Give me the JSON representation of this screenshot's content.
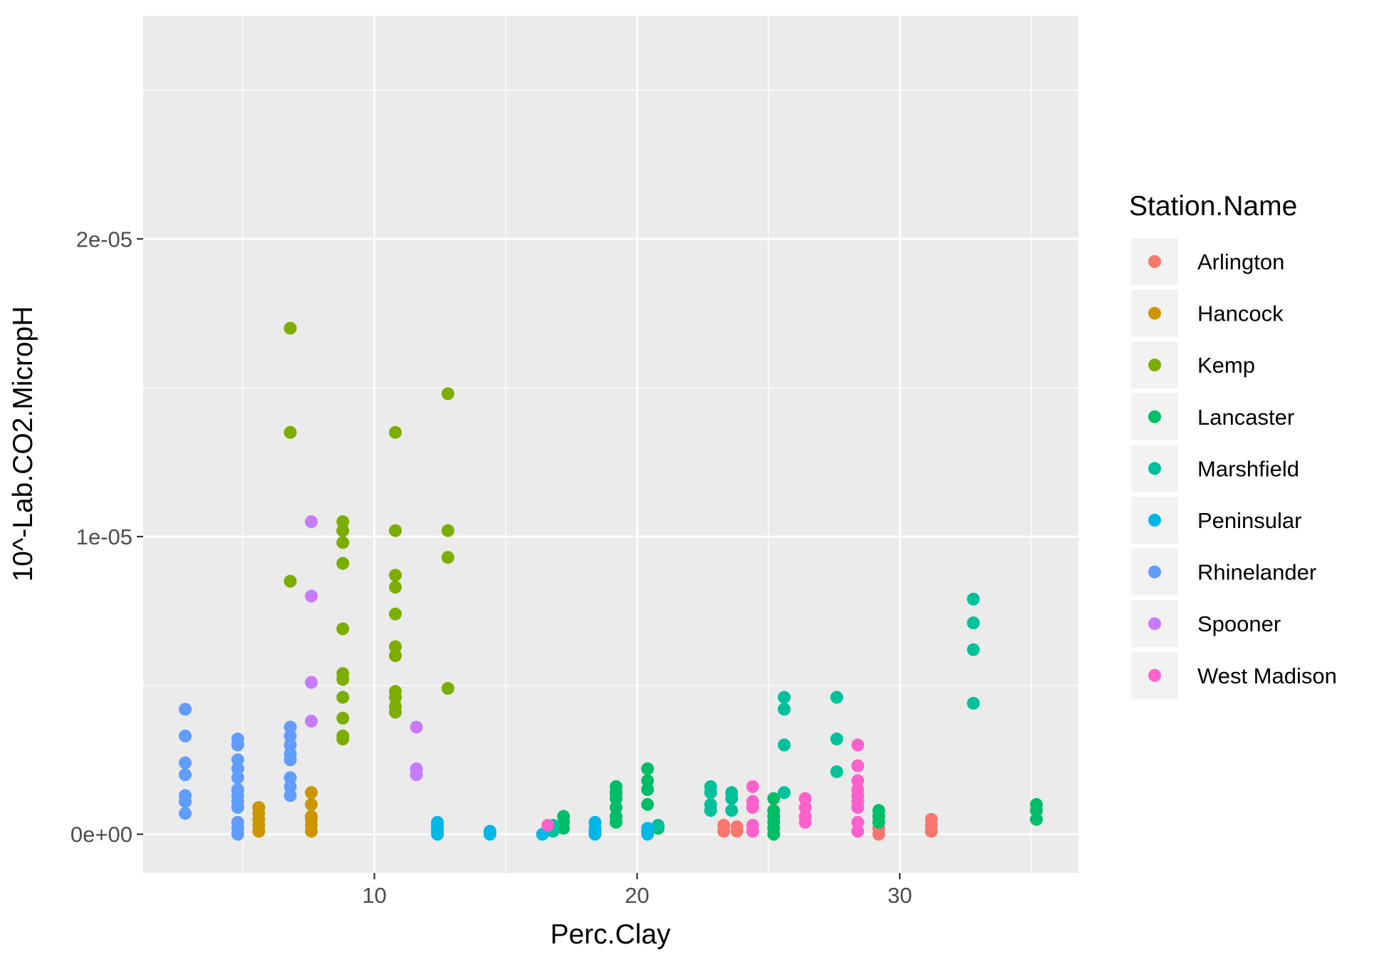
{
  "chart_data": {
    "type": "scatter",
    "title": "",
    "xlabel": "Perc.Clay",
    "ylabel": "10^-Lab.CO2.MicropH",
    "xlim": [
      1.2,
      36.8
    ],
    "ylim": [
      -1.3e-06,
      2.75e-05
    ],
    "x_ticks": [
      10,
      20,
      30
    ],
    "x_tick_labels": [
      "10",
      "20",
      "30"
    ],
    "y_ticks": [
      0,
      1e-05,
      2e-05
    ],
    "y_tick_labels": [
      "0e+00",
      "1e-05",
      "2e-05"
    ],
    "grid": true,
    "legend": {
      "title": "Station.Name",
      "position": "right"
    },
    "series": [
      {
        "name": "Arlington",
        "color": "#F8766D",
        "points": [
          [
            23.3,
            1e-07
          ],
          [
            23.3,
            3e-07
          ],
          [
            23.8,
            1e-07
          ],
          [
            23.8,
            2.5e-07
          ],
          [
            29.2,
            0.0
          ],
          [
            29.2,
            2e-07
          ],
          [
            31.2,
            1e-07
          ],
          [
            31.2,
            3e-07
          ],
          [
            31.2,
            5e-07
          ]
        ]
      },
      {
        "name": "Hancock",
        "color": "#CD9600",
        "points": [
          [
            5.6,
            1e-07
          ],
          [
            5.6,
            3e-07
          ],
          [
            5.6,
            5e-07
          ],
          [
            5.6,
            7e-07
          ],
          [
            5.6,
            9e-07
          ],
          [
            7.6,
            1e-07
          ],
          [
            7.6,
            3e-07
          ],
          [
            7.6,
            5e-07
          ],
          [
            7.6,
            1e-06
          ],
          [
            7.6,
            1.4e-06
          ],
          [
            7.6,
            6e-07
          ]
        ]
      },
      {
        "name": "Kemp",
        "color": "#7CAE00",
        "points": [
          [
            6.8,
            1.7e-05
          ],
          [
            6.8,
            1.35e-05
          ],
          [
            6.8,
            8.5e-06
          ],
          [
            8.8,
            1.05e-05
          ],
          [
            8.8,
            1.02e-05
          ],
          [
            8.8,
            9.8e-06
          ],
          [
            8.8,
            9.1e-06
          ],
          [
            8.8,
            6.9e-06
          ],
          [
            8.8,
            5.4e-06
          ],
          [
            8.8,
            5.2e-06
          ],
          [
            8.8,
            4.6e-06
          ],
          [
            8.8,
            3.9e-06
          ],
          [
            8.8,
            3.3e-06
          ],
          [
            8.8,
            3.2e-06
          ],
          [
            10.8,
            1.35e-05
          ],
          [
            10.8,
            1.02e-05
          ],
          [
            10.8,
            8.7e-06
          ],
          [
            10.8,
            8.3e-06
          ],
          [
            10.8,
            7.4e-06
          ],
          [
            10.8,
            6.3e-06
          ],
          [
            10.8,
            6e-06
          ],
          [
            10.8,
            4.8e-06
          ],
          [
            10.8,
            4.6e-06
          ],
          [
            10.8,
            4.3e-06
          ],
          [
            10.8,
            4.1e-06
          ],
          [
            12.8,
            1.48e-05
          ],
          [
            12.8,
            1.02e-05
          ],
          [
            12.8,
            9.3e-06
          ],
          [
            12.8,
            4.9e-06
          ]
        ]
      },
      {
        "name": "Lancaster",
        "color": "#00BE67",
        "points": [
          [
            17.2,
            2e-07
          ],
          [
            17.2,
            4e-07
          ],
          [
            17.2,
            6e-07
          ],
          [
            19.2,
            1.6e-06
          ],
          [
            19.2,
            1.4e-06
          ],
          [
            19.2,
            1.2e-06
          ],
          [
            19.2,
            9e-07
          ],
          [
            19.2,
            6e-07
          ],
          [
            19.2,
            4e-07
          ],
          [
            20.4,
            2.2e-06
          ],
          [
            20.4,
            1.8e-06
          ],
          [
            20.4,
            1.5e-06
          ],
          [
            20.4,
            1e-06
          ],
          [
            20.8,
            2e-07
          ],
          [
            25.2,
            1.2e-06
          ],
          [
            25.2,
            8e-07
          ],
          [
            25.2,
            6e-07
          ],
          [
            25.2,
            4e-07
          ],
          [
            25.2,
            2e-07
          ],
          [
            25.2,
            0.0
          ],
          [
            29.2,
            8e-07
          ],
          [
            29.2,
            6e-07
          ],
          [
            29.2,
            4e-07
          ],
          [
            35.2,
            1e-06
          ],
          [
            35.2,
            8e-07
          ],
          [
            35.2,
            5e-07
          ]
        ]
      },
      {
        "name": "Marshfield",
        "color": "#00C19A",
        "points": [
          [
            16.8,
            1e-07
          ],
          [
            16.8,
            3e-07
          ],
          [
            20.8,
            3e-07
          ],
          [
            22.8,
            1.6e-06
          ],
          [
            22.8,
            1.4e-06
          ],
          [
            22.8,
            1e-06
          ],
          [
            22.8,
            8e-07
          ],
          [
            23.6,
            1.4e-06
          ],
          [
            23.6,
            1.2e-06
          ],
          [
            23.6,
            8e-07
          ],
          [
            25.6,
            4.6e-06
          ],
          [
            25.6,
            4.2e-06
          ],
          [
            25.6,
            3e-06
          ],
          [
            25.6,
            1.4e-06
          ],
          [
            27.6,
            4.6e-06
          ],
          [
            27.6,
            3.2e-06
          ],
          [
            27.6,
            2.1e-06
          ],
          [
            32.8,
            7.9e-06
          ],
          [
            32.8,
            7.1e-06
          ],
          [
            32.8,
            6.2e-06
          ],
          [
            32.8,
            4.4e-06
          ]
        ]
      },
      {
        "name": "Peninsular",
        "color": "#00B8E7",
        "points": [
          [
            12.4,
            0.0
          ],
          [
            12.4,
            1e-07
          ],
          [
            12.4,
            2e-07
          ],
          [
            12.4,
            3e-07
          ],
          [
            12.4,
            4e-07
          ],
          [
            14.4,
            0.0
          ],
          [
            14.4,
            1e-07
          ],
          [
            16.4,
            0.0
          ],
          [
            18.4,
            0.0
          ],
          [
            18.4,
            1e-07
          ],
          [
            18.4,
            2e-07
          ],
          [
            18.4,
            4e-07
          ],
          [
            20.4,
            0.0
          ],
          [
            20.4,
            1e-07
          ],
          [
            20.4,
            2e-07
          ]
        ]
      },
      {
        "name": "Rhinelander",
        "color": "#619CFF",
        "points": [
          [
            2.8,
            4.2e-06
          ],
          [
            2.8,
            3.3e-06
          ],
          [
            2.8,
            2.4e-06
          ],
          [
            2.8,
            2e-06
          ],
          [
            2.8,
            1.3e-06
          ],
          [
            2.8,
            1.1e-06
          ],
          [
            2.8,
            7e-07
          ],
          [
            4.8,
            3.2e-06
          ],
          [
            4.8,
            3e-06
          ],
          [
            4.8,
            2.5e-06
          ],
          [
            4.8,
            2.2e-06
          ],
          [
            4.8,
            1.9e-06
          ],
          [
            4.8,
            1.5e-06
          ],
          [
            4.8,
            1.3e-06
          ],
          [
            4.8,
            1.1e-06
          ],
          [
            4.8,
            9e-07
          ],
          [
            4.8,
            4e-07
          ],
          [
            4.8,
            2e-07
          ],
          [
            4.8,
            0.0
          ],
          [
            6.8,
            3.6e-06
          ],
          [
            6.8,
            3.3e-06
          ],
          [
            6.8,
            3e-06
          ],
          [
            6.8,
            2.7e-06
          ],
          [
            6.8,
            2.5e-06
          ],
          [
            6.8,
            1.9e-06
          ],
          [
            6.8,
            1.6e-06
          ],
          [
            6.8,
            1.3e-06
          ]
        ]
      },
      {
        "name": "Spooner",
        "color": "#C77CFF",
        "points": [
          [
            7.6,
            1.05e-05
          ],
          [
            7.6,
            8e-06
          ],
          [
            7.6,
            5.1e-06
          ],
          [
            7.6,
            3.8e-06
          ],
          [
            11.6,
            3.6e-06
          ],
          [
            11.6,
            2.2e-06
          ],
          [
            11.6,
            2e-06
          ]
        ]
      },
      {
        "name": "West Madison",
        "color": "#FF61CC",
        "points": [
          [
            16.6,
            3e-07
          ],
          [
            24.4,
            1.6e-06
          ],
          [
            24.4,
            1.1e-06
          ],
          [
            24.4,
            9e-07
          ],
          [
            24.4,
            3e-07
          ],
          [
            24.4,
            1e-07
          ],
          [
            26.4,
            1.2e-06
          ],
          [
            26.4,
            9e-07
          ],
          [
            26.4,
            6e-07
          ],
          [
            26.4,
            4e-07
          ],
          [
            28.4,
            3e-06
          ],
          [
            28.4,
            2.3e-06
          ],
          [
            28.4,
            1.8e-06
          ],
          [
            28.4,
            1.5e-06
          ],
          [
            28.4,
            1.3e-06
          ],
          [
            28.4,
            1.1e-06
          ],
          [
            28.4,
            9e-07
          ],
          [
            28.4,
            4e-07
          ],
          [
            28.4,
            1e-07
          ]
        ]
      }
    ]
  }
}
